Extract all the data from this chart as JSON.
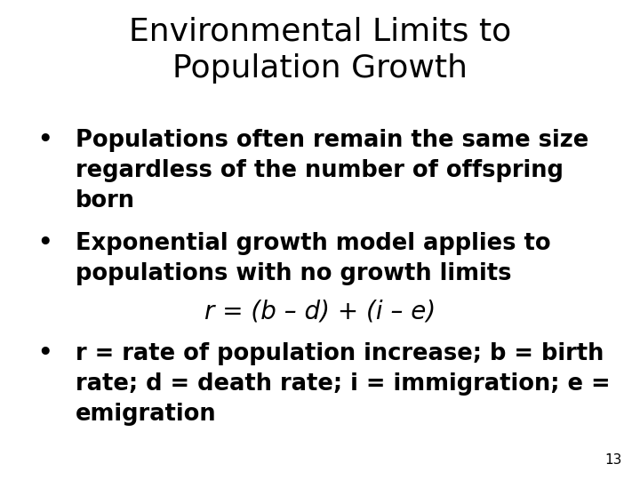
{
  "title_line1": "Environmental Limits to",
  "title_line2": "Population Growth",
  "background_color": "#ffffff",
  "text_color": "#000000",
  "title_fontsize": 26,
  "body_fontsize": 18.5,
  "equation_fontsize": 20,
  "page_number": "13",
  "page_number_fontsize": 11,
  "bullet1_lines": [
    "Populations often remain the same size",
    "regardless of the number of offspring",
    "born"
  ],
  "bullet2_lines": [
    "Exponential growth model applies to",
    "populations with no growth limits"
  ],
  "equation": "r = (b – d) + (i – e)",
  "bullet3_lines": [
    "r = rate of population increase; b = birth",
    "rate; d = death rate; i = immigration; e =",
    "emigration"
  ]
}
